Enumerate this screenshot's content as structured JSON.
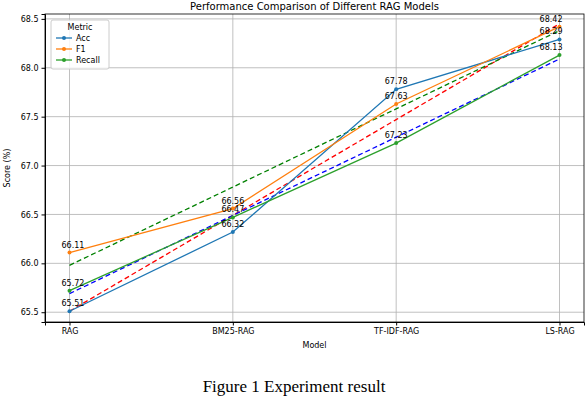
{
  "chart_data": {
    "type": "line",
    "title": "Performance Comparison of Different RAG Models",
    "x_label": "Model",
    "y_label": "Score (%)",
    "caption": "Figure 1 Experiment result",
    "legend_title": "Metric",
    "legend": "upper left",
    "grid": true,
    "data_labels": true,
    "marker": "circle",
    "categories": [
      "RAG",
      "BM25-RAG",
      "TF-IDF-RAG",
      "LS-RAG"
    ],
    "series": [
      {
        "name": "Acc",
        "color": "#1f77b4",
        "values": [
          65.51,
          66.32,
          67.78,
          68.29
        ]
      },
      {
        "name": "F1",
        "color": "#ff7f0e",
        "values": [
          66.11,
          66.56,
          67.63,
          68.42
        ]
      },
      {
        "name": "Recall",
        "color": "#2ca02c",
        "values": [
          65.72,
          66.47,
          67.23,
          68.13
        ]
      }
    ],
    "trend_lines": [
      {
        "color": "#ff0000",
        "line_style": "dashed",
        "values": [
          65.51,
          66.49,
          67.47,
          68.45
        ]
      },
      {
        "color": "#0000ff",
        "line_style": "dashed",
        "values": [
          65.69,
          66.49,
          67.29,
          68.09
        ]
      },
      {
        "color": "#008000",
        "line_style": "dashed",
        "values": [
          65.98,
          66.78,
          67.58,
          68.38
        ]
      }
    ],
    "ylim": [
      65.4,
      68.55
    ],
    "yticks": [
      65.5,
      {
        "value": 66,
        "label": "66.0"
      },
      66.5,
      {
        "value": 67,
        "label": "67.0"
      },
      67.5,
      {
        "value": 68,
        "label": "68.0"
      },
      68.5
    ]
  }
}
